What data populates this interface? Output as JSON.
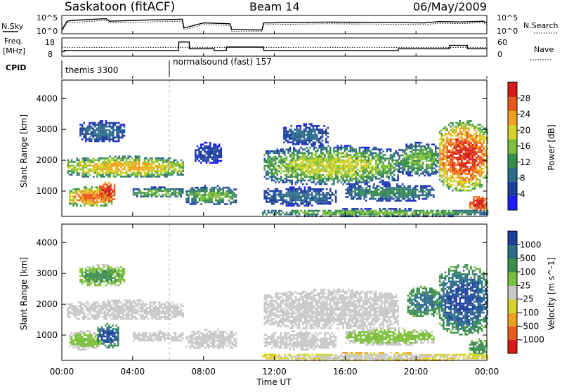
{
  "header": {
    "station": "Saskatoon (fitACF)",
    "beam": "Beam 14",
    "date": "06/May/2009"
  },
  "strip_labels": {
    "nsky": "N.Sky",
    "nsky_ticks": [
      "10^5",
      "10^0"
    ],
    "nsearch": "N.Search",
    "nsearch_ticks": [
      "10^5",
      "10^0"
    ],
    "freq_top": "Freq.",
    "freq_unit": "[MHz]",
    "freq_ticks": [
      "18",
      "8"
    ],
    "nave": "Nave",
    "nave_ticks": [
      "60",
      "0"
    ],
    "cpid": "CPID"
  },
  "chart_data": [
    {
      "type": "line",
      "name": "noise_strip",
      "x_hours": [
        0,
        0.3,
        0.6,
        2.5,
        2.7,
        5.0,
        6.8,
        6.9,
        8.0,
        9.5,
        9.6,
        11.3,
        11.4,
        15.0,
        18.5,
        20.5,
        21.3,
        22.5,
        23.8,
        24.0
      ],
      "nsky_level": [
        0.2,
        0.7,
        0.75,
        0.85,
        0.7,
        0.78,
        0.82,
        0.3,
        0.6,
        0.55,
        0.2,
        0.18,
        0.6,
        0.65,
        0.62,
        0.6,
        0.68,
        0.66,
        0.7,
        0.6
      ],
      "nsearch_level": [
        0.1,
        0.6,
        0.62,
        0.75,
        0.6,
        0.66,
        0.7,
        0.2,
        0.5,
        0.45,
        0.1,
        0.1,
        0.5,
        0.55,
        0.52,
        0.5,
        0.58,
        0.56,
        0.62,
        0.5
      ]
    },
    {
      "type": "line",
      "name": "freq_nave_strip",
      "freq_ylim": [
        8,
        18
      ],
      "nave_ylim": [
        0,
        60
      ],
      "nave_dotted_level": 29,
      "freq_steps": [
        {
          "x": 0,
          "y": 10.5
        },
        {
          "x": 0.15,
          "y": 11
        },
        {
          "x": 6.5,
          "y": 11
        },
        {
          "x": 6.6,
          "y": 16
        },
        {
          "x": 7.1,
          "y": 16
        },
        {
          "x": 7.2,
          "y": 12
        },
        {
          "x": 8.5,
          "y": 12
        },
        {
          "x": 8.6,
          "y": 11
        },
        {
          "x": 9.2,
          "y": 11
        },
        {
          "x": 9.3,
          "y": 13
        },
        {
          "x": 11.3,
          "y": 13
        },
        {
          "x": 11.4,
          "y": 11
        },
        {
          "x": 18.9,
          "y": 11
        },
        {
          "x": 19.0,
          "y": 12
        },
        {
          "x": 21.8,
          "y": 12
        },
        {
          "x": 21.9,
          "y": 14
        },
        {
          "x": 22.8,
          "y": 14
        },
        {
          "x": 22.9,
          "y": 12
        },
        {
          "x": 24,
          "y": 12
        }
      ]
    },
    {
      "type": "table",
      "name": "cpid_strip",
      "entries": [
        {
          "start_hour": 0,
          "label": "themis 3300"
        },
        {
          "start_hour": 6.0,
          "label": "normalsound (fast) 157"
        }
      ]
    },
    {
      "type": "heatmap",
      "name": "power",
      "ylabel": "Slant Range [km]",
      "ylim": [
        180,
        4600
      ],
      "yticks": [
        1000,
        2000,
        3000,
        4000
      ],
      "xlim": [
        0,
        24
      ],
      "colorbar": {
        "label": "Power [dB]",
        "ticks": [
          "4",
          "8",
          "12",
          "16",
          "20",
          "24",
          "28"
        ]
      },
      "palette": [
        "#1a1aff",
        "#1d3f9e",
        "#2e6c8a",
        "#3a8e4e",
        "#7cbf3a",
        "#d8d32a",
        "#f0a020",
        "#ea5a1a",
        "#d81a1a"
      ],
      "blobs": [
        {
          "x0": 0.3,
          "x1": 6.8,
          "y0": 1450,
          "y1": 2150,
          "lvl": [
            1,
            6
          ]
        },
        {
          "x0": 0.4,
          "x1": 2.8,
          "y0": 500,
          "y1": 1150,
          "lvl": [
            2,
            7
          ]
        },
        {
          "x0": 2.1,
          "x1": 3.0,
          "y0": 700,
          "y1": 1300,
          "lvl": [
            6,
            8
          ]
        },
        {
          "x0": 4.0,
          "x1": 6.8,
          "y0": 800,
          "y1": 1150,
          "lvl": [
            0,
            4
          ]
        },
        {
          "x0": 1.0,
          "x1": 3.5,
          "y0": 2600,
          "y1": 3300,
          "lvl": [
            0,
            2
          ]
        },
        {
          "x0": 7.0,
          "x1": 9.8,
          "y0": 550,
          "y1": 1200,
          "lvl": [
            0,
            4
          ]
        },
        {
          "x0": 7.5,
          "x1": 9.0,
          "y0": 1900,
          "y1": 2600,
          "lvl": [
            0,
            1
          ]
        },
        {
          "x0": 11.4,
          "x1": 19.0,
          "y0": 1200,
          "y1": 2500,
          "lvl": [
            0,
            5
          ]
        },
        {
          "x0": 11.4,
          "x1": 15.5,
          "y0": 550,
          "y1": 1150,
          "lvl": [
            0,
            2
          ]
        },
        {
          "x0": 12.5,
          "x1": 15.0,
          "y0": 2500,
          "y1": 3200,
          "lvl": [
            0,
            2
          ]
        },
        {
          "x0": 16.0,
          "x1": 21.0,
          "y0": 700,
          "y1": 1250,
          "lvl": [
            0,
            3
          ]
        },
        {
          "x0": 19.0,
          "x1": 21.3,
          "y0": 1500,
          "y1": 2600,
          "lvl": [
            0,
            4
          ]
        },
        {
          "x0": 21.3,
          "x1": 24.0,
          "y0": 1000,
          "y1": 3300,
          "lvl": [
            2,
            8
          ]
        },
        {
          "x0": 23.0,
          "x1": 24.0,
          "y0": 350,
          "y1": 900,
          "lvl": [
            5,
            8
          ]
        },
        {
          "x0": 11.3,
          "x1": 24.0,
          "y0": 200,
          "y1": 450,
          "lvl": [
            0,
            4
          ]
        }
      ]
    },
    {
      "type": "heatmap",
      "name": "velocity",
      "ylabel": "Slant Range [km]",
      "xlabel": "Time UT",
      "ylim": [
        180,
        4600
      ],
      "yticks": [
        1000,
        2000,
        3000,
        4000
      ],
      "xlim": [
        0,
        24
      ],
      "xticks": [
        "00:00",
        "04:00",
        "08:00",
        "12:00",
        "16:00",
        "20:00",
        "00:00"
      ],
      "colorbar": {
        "label": "Velocity [m s^-1]",
        "ticks": [
          "1000",
          "500",
          "100",
          "25",
          "-25",
          "-100",
          "-500",
          "-1000"
        ]
      },
      "palette": [
        "#d81a1a",
        "#ea5a1a",
        "#f0a020",
        "#d8d32a",
        "#c8c8c8",
        "#7cbf3a",
        "#3a8e4e",
        "#2e6c8a",
        "#1d3f9e"
      ],
      "blobs": [
        {
          "x0": 0.3,
          "x1": 6.8,
          "y0": 1500,
          "y1": 2150,
          "lvl": [
            4,
            4
          ]
        },
        {
          "x0": 0.4,
          "x1": 2.2,
          "y0": 550,
          "y1": 1150,
          "lvl": [
            4,
            5
          ]
        },
        {
          "x0": 2.0,
          "x1": 3.2,
          "y0": 600,
          "y1": 1400,
          "lvl": [
            5,
            8
          ]
        },
        {
          "x0": 4.0,
          "x1": 6.8,
          "y0": 800,
          "y1": 1150,
          "lvl": [
            4,
            4
          ]
        },
        {
          "x0": 1.0,
          "x1": 3.5,
          "y0": 2600,
          "y1": 3300,
          "lvl": [
            4,
            6
          ]
        },
        {
          "x0": 7.0,
          "x1": 9.8,
          "y0": 550,
          "y1": 1200,
          "lvl": [
            4,
            4
          ]
        },
        {
          "x0": 11.4,
          "x1": 19.0,
          "y0": 1200,
          "y1": 2500,
          "lvl": [
            4,
            4
          ]
        },
        {
          "x0": 11.4,
          "x1": 15.5,
          "y0": 550,
          "y1": 1150,
          "lvl": [
            4,
            4
          ]
        },
        {
          "x0": 16.0,
          "x1": 21.0,
          "y0": 700,
          "y1": 1250,
          "lvl": [
            4,
            5
          ]
        },
        {
          "x0": 19.5,
          "x1": 21.3,
          "y0": 1600,
          "y1": 2600,
          "lvl": [
            5,
            7
          ]
        },
        {
          "x0": 21.3,
          "x1": 24.0,
          "y0": 1000,
          "y1": 3300,
          "lvl": [
            5,
            8
          ]
        },
        {
          "x0": 23.0,
          "x1": 24.0,
          "y0": 350,
          "y1": 900,
          "lvl": [
            5,
            6
          ]
        },
        {
          "x0": 11.3,
          "x1": 24.0,
          "y0": 200,
          "y1": 450,
          "lvl": [
            2,
            4
          ]
        }
      ]
    }
  ]
}
